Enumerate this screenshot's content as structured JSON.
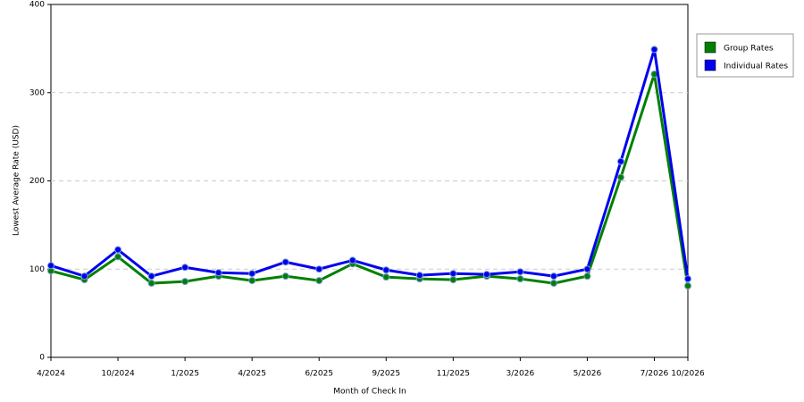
{
  "chart_data": {
    "type": "line",
    "x_label": "Month of Check In",
    "y_label": "Lowest Average Rate (USD)",
    "categories": [
      "4/2024",
      null,
      "10/2024",
      null,
      "1/2025",
      null,
      "4/2025",
      null,
      "6/2025",
      null,
      "9/2025",
      null,
      "11/2025",
      null,
      "3/2026",
      null,
      "5/2026",
      null,
      "7/2026",
      "10/2026"
    ],
    "series": [
      {
        "name": "Group Rates",
        "color": "#008000",
        "values": [
          98,
          88,
          114,
          84,
          86,
          92,
          87,
          92,
          87,
          106,
          91,
          89,
          88,
          92,
          89,
          84,
          92,
          204,
          321,
          81
        ]
      },
      {
        "name": "Individual Rates",
        "color": "#0000ee",
        "values": [
          104,
          92,
          122,
          92,
          102,
          96,
          95,
          108,
          100,
          110,
          99,
          93,
          95,
          94,
          97,
          92,
          100,
          222,
          349,
          89
        ]
      }
    ],
    "ylim": [
      0,
      400
    ],
    "yticks": [
      0,
      100,
      200,
      300,
      400
    ],
    "grid": true,
    "legend": "right"
  }
}
